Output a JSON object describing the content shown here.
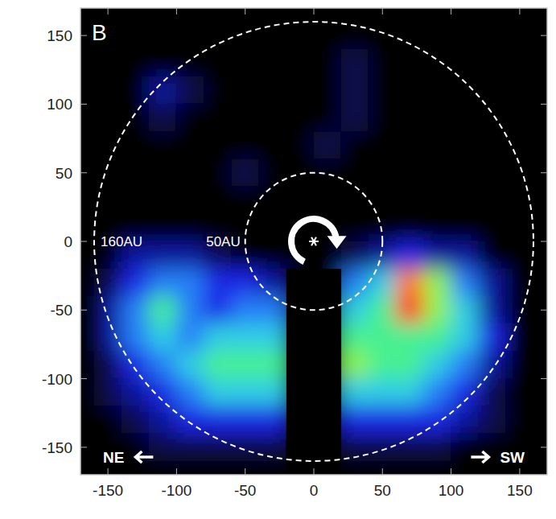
{
  "chart_data": {
    "type": "heatmap",
    "panel_label": "B",
    "x": [
      -150,
      -130,
      -110,
      -90,
      -70,
      -50,
      -30,
      -10,
      10,
      30,
      50,
      70,
      90,
      110,
      130,
      150
    ],
    "y": [
      150,
      130,
      110,
      90,
      70,
      50,
      30,
      10,
      -10,
      -30,
      -50,
      -70,
      -90,
      -110,
      -130,
      -150
    ],
    "values": [
      [
        0,
        0,
        0,
        0,
        0,
        0,
        0,
        0,
        0,
        0,
        0,
        0,
        0,
        0,
        0,
        0
      ],
      [
        0,
        0,
        0,
        0,
        0,
        0,
        0,
        0,
        0,
        1,
        0,
        0,
        0,
        0,
        0,
        0
      ],
      [
        0,
        0,
        2,
        1,
        0,
        0,
        0,
        0,
        0,
        1,
        0,
        0,
        0,
        0,
        0,
        0
      ],
      [
        0,
        0,
        1,
        0,
        0,
        0,
        0,
        0,
        0,
        1,
        0,
        0,
        0,
        0,
        0,
        0
      ],
      [
        0,
        0,
        0,
        0,
        0,
        0,
        0,
        0,
        1,
        0,
        0,
        0,
        0,
        0,
        0,
        0
      ],
      [
        0,
        0,
        0,
        0,
        0,
        1,
        0,
        0,
        0,
        0,
        0,
        0,
        0,
        0,
        0,
        0
      ],
      [
        0,
        0,
        0,
        0,
        0,
        0,
        0,
        0,
        0,
        0,
        0,
        0,
        0,
        0,
        0,
        0
      ],
      [
        0,
        0,
        0,
        0,
        0,
        0,
        0,
        0,
        0,
        0,
        0,
        0,
        0,
        0,
        0,
        0
      ],
      [
        0,
        2,
        2,
        2,
        1,
        0,
        0,
        0,
        0,
        1,
        2,
        3,
        2,
        2,
        0,
        0
      ],
      [
        1,
        3,
        4,
        4,
        3,
        3,
        2,
        0,
        0,
        4,
        5,
        9,
        7,
        4,
        2,
        0
      ],
      [
        2,
        4,
        6,
        4,
        3,
        4,
        4,
        0,
        0,
        5,
        6,
        10,
        7,
        5,
        2,
        0
      ],
      [
        2,
        4,
        5,
        4,
        5,
        5,
        5,
        0,
        0,
        6,
        6,
        6,
        6,
        5,
        3,
        0
      ],
      [
        1,
        3,
        4,
        5,
        6,
        6,
        6,
        0,
        0,
        7,
        6,
        6,
        5,
        4,
        2,
        0
      ],
      [
        1,
        2,
        3,
        4,
        5,
        5,
        5,
        0,
        0,
        5,
        5,
        5,
        4,
        3,
        1,
        0
      ],
      [
        0,
        1,
        2,
        3,
        3,
        3,
        3,
        0,
        0,
        3,
        3,
        3,
        3,
        2,
        1,
        0
      ],
      [
        0,
        0,
        1,
        1,
        1,
        1,
        1,
        0,
        0,
        1,
        1,
        1,
        1,
        0,
        0,
        0
      ]
    ],
    "zlim": [
      0,
      10
    ],
    "xlim": [
      -170,
      170
    ],
    "ylim": [
      -170,
      170
    ],
    "xticks": [
      -150,
      -100,
      -50,
      0,
      50,
      100,
      150
    ],
    "yticks": [
      -150,
      -100,
      -50,
      0,
      50,
      100,
      150
    ],
    "circles": [
      {
        "radius": 50,
        "label": "50AU"
      },
      {
        "radius": 160,
        "label": "160AU"
      }
    ],
    "mask": {
      "x": [
        -20,
        20
      ],
      "y": [
        -170,
        -20
      ]
    },
    "directions": {
      "left": "NE",
      "right": "SW"
    }
  }
}
